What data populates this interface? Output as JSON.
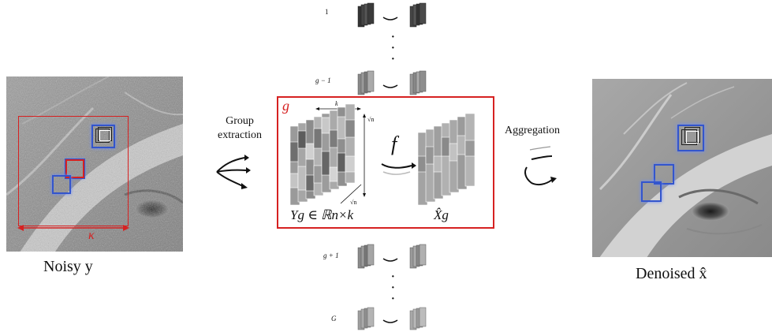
{
  "left_image": {
    "caption": "Noisy y",
    "kappa_label": "κ"
  },
  "right_image": {
    "caption": "Denoised x̂"
  },
  "steps": {
    "extraction": "Group\nextraction",
    "aggregation": "Aggregation"
  },
  "group": {
    "index_label": "g",
    "k_label": "k",
    "sqrt_n_label": "√n",
    "sqrt_n_depth_label": "√n",
    "f_label": "f",
    "input_label": "Yg ∈ ℝn×k",
    "output_label": "X̂g"
  },
  "rows": {
    "r1": "1",
    "r_gm1": "g − 1",
    "r_gp1": "g + 1",
    "r_G": "G"
  },
  "colors": {
    "box": "#d62121",
    "highlight": "#3355cc"
  }
}
